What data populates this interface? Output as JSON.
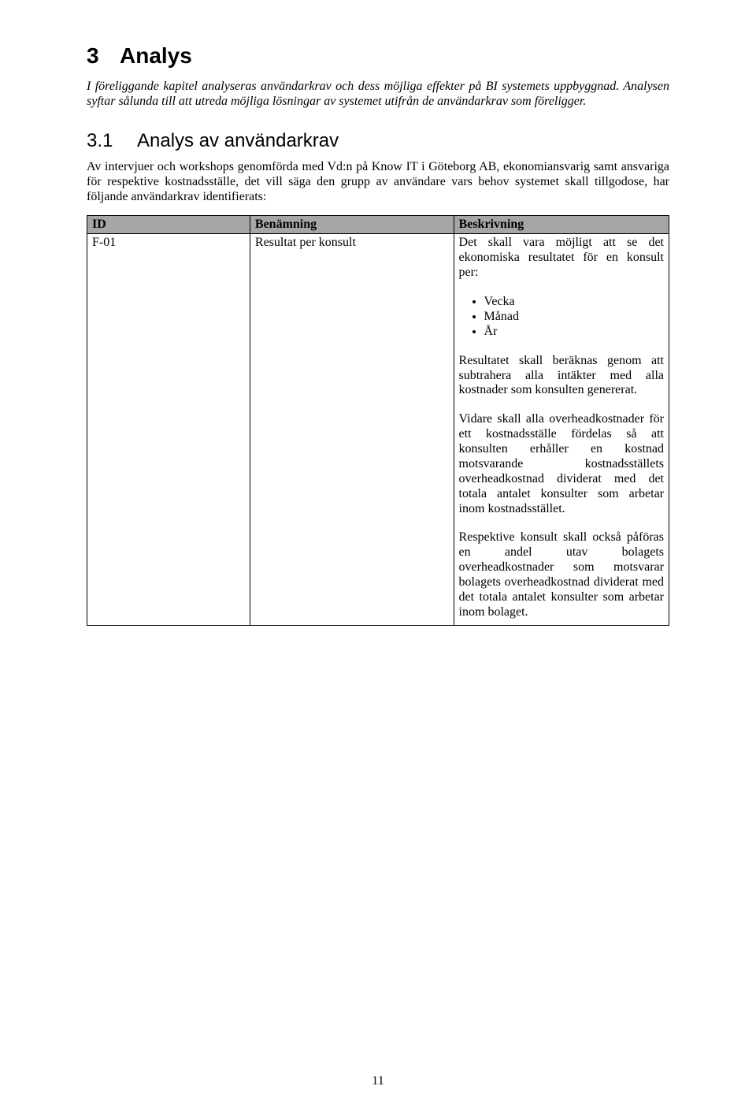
{
  "heading1": {
    "num": "3",
    "text": "Analys"
  },
  "intro": "I föreliggande kapitel analyseras användarkrav och dess möjliga effekter på BI systemets uppbyggnad. Analysen syftar sålunda till att utreda möjliga lösningar av systemet utifrån de användarkrav som föreligger.",
  "heading2": {
    "num": "3.1",
    "text": "Analys av användarkrav"
  },
  "body1": "Av intervjuer och workshops genomförda med Vd:n på Know IT i Göteborg AB, ekonomiansvarig samt ansvariga för respektive kostnadsställe, det vill säga den grupp av användare vars behov systemet skall tillgodose, har följande användarkrav identifierats:",
  "table": {
    "headers": {
      "id": "ID",
      "name": "Benämning",
      "desc": "Beskrivning"
    },
    "row": {
      "id": "F-01",
      "name": "Resultat per konsult",
      "desc": {
        "p1": "Det skall vara möjligt att se det ekonomiska resultatet för en konsult per:",
        "list": [
          "Vecka",
          "Månad",
          "År"
        ],
        "p2": "Resultatet skall beräknas genom att subtrahera alla intäkter med alla kostnader som konsulten genererat.",
        "p3": "Vidare skall alla overheadkostnader för ett kostnadsställe fördelas så att konsulten erhåller en kostnad motsvarande kostnadsställets overheadkostnad dividerat med det totala antalet konsulter som arbetar inom kostnadsstället.",
        "p4": "Respektive konsult skall också påföras en andel utav bolagets overheadkostnader som motsvarar bolagets overheadkostnad dividerat med det totala antalet konsulter som arbetar inom bolaget."
      }
    }
  },
  "page_number": "11",
  "colors": {
    "header_bg": "#a6a6a6",
    "border": "#000000",
    "text": "#000000",
    "bg": "#ffffff"
  }
}
